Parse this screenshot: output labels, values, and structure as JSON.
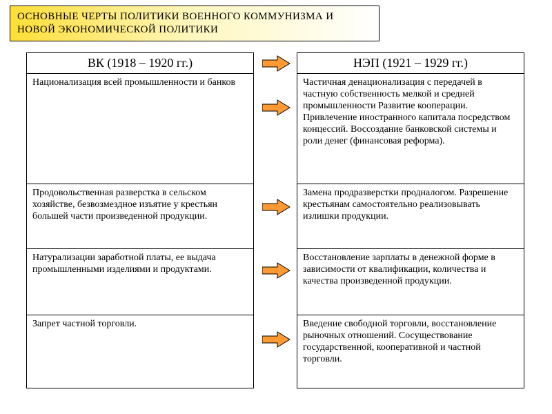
{
  "title": "ОСНОВНЫЕ  ЧЕРТЫ  ПОЛИТИКИ  ВОЕННОГО  КОММУНИЗМА  И  НОВОЙ  ЭКОНОМИЧЕСКОЙ  ПОЛИТИКИ",
  "columns": {
    "left_header": "ВК  (1918 – 1920 гг.)",
    "right_header": "НЭП (1921 – 1929 гг.)"
  },
  "rows": [
    {
      "left": "Национализация всей промышленности и банков",
      "right": "Частичная денационализация с передачей в частную собственность мелкой и средней промышленности Развитие кооперации.\nПривлечение иностранного капитала посредством концессий.\nВоссоздание банковской системы и роли денег (финансовая реформа)."
    },
    {
      "left": "Продовольственная разверстка в сельском хозяйстве, безвозмездное изъятие у крестьян большей части произведенной продукции.",
      "right": "Замена продразверстки продналогом. Разрешение крестьянам самостоятельно реализовывать излишки продукции."
    },
    {
      "left": "Натурализации заработной платы, ее выдача промышленными изделиями и продуктами.",
      "right": "Восстановление зарплаты в денежной форме в зависимости от квалификации, количества и качества произведенной продукции."
    },
    {
      "left": "Запрет частной торговли.",
      "right": "Введение свободной торговли, восстановление рыночных отношений. Сосуществование государственной, кооперативной и частной торговли."
    }
  ],
  "arrow": {
    "fill": "#ff9933",
    "stroke": "#000000"
  }
}
